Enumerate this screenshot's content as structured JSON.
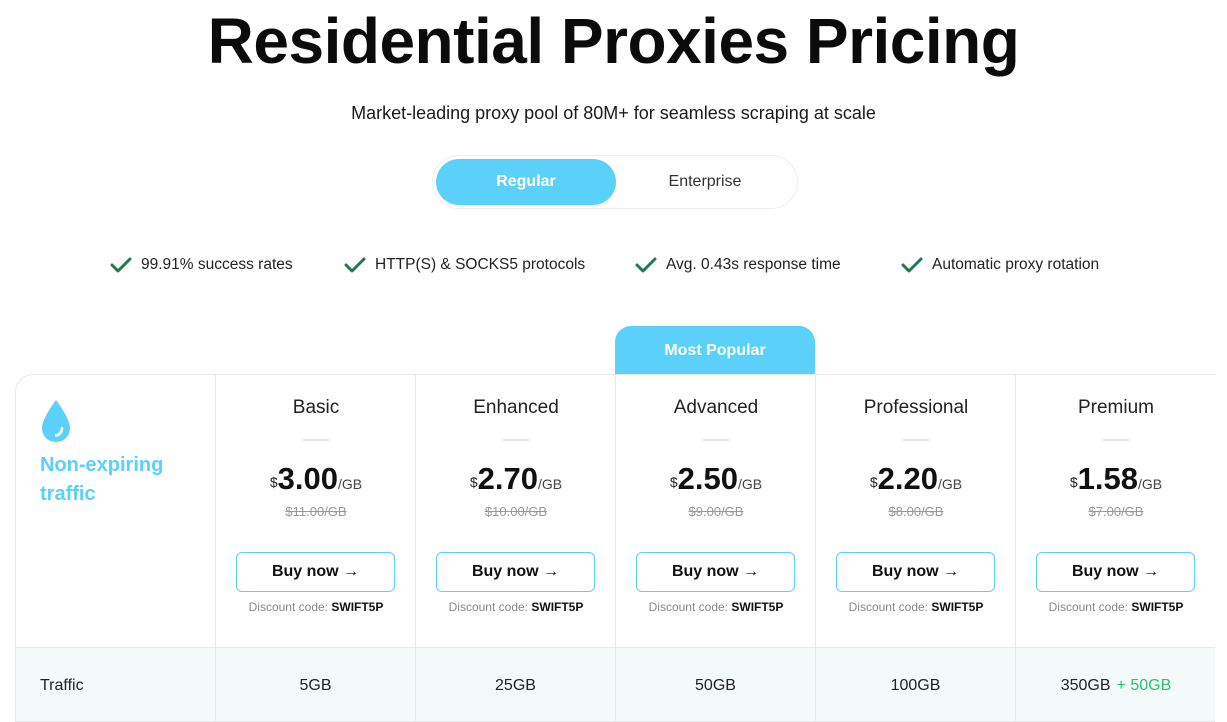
{
  "header": {
    "title": "Residential Proxies Pricing",
    "subtitle": "Market-leading proxy pool of 80M+ for seamless scraping at scale"
  },
  "toggle": {
    "options": [
      {
        "label": "Regular",
        "active": true
      },
      {
        "label": "Enterprise",
        "active": false
      }
    ]
  },
  "features": [
    {
      "icon": "check-icon",
      "label": "99.91% success rates"
    },
    {
      "icon": "check-icon",
      "label": "HTTP(S) & SOCKS5 protocols"
    },
    {
      "icon": "check-icon",
      "label": "Avg. 0.43s response time"
    },
    {
      "icon": "check-icon",
      "label": "Automatic proxy rotation"
    }
  ],
  "table": {
    "row_header": {
      "icon": "water-drop-icon",
      "label": "Non-expiring traffic"
    },
    "popular_label": "Most Popular",
    "currency": "$",
    "unit": "/GB",
    "buy_label": "Buy now →",
    "discount_prefix": "Discount code:",
    "discount_code": "SWIFT5P",
    "plans": [
      {
        "name": "Basic",
        "price": "3.00",
        "old_price": "$11.00/GB",
        "traffic": "5GB",
        "bonus": ""
      },
      {
        "name": "Enhanced",
        "price": "2.70",
        "old_price": "$10.00/GB",
        "traffic": "25GB",
        "bonus": ""
      },
      {
        "name": "Advanced",
        "price": "2.50",
        "old_price": "$9.00/GB",
        "traffic": "50GB",
        "bonus": "",
        "popular": true
      },
      {
        "name": "Professional",
        "price": "2.20",
        "old_price": "$8.00/GB",
        "traffic": "100GB",
        "bonus": ""
      },
      {
        "name": "Premium",
        "price": "1.58",
        "old_price": "$7.00/GB",
        "traffic": "350GB",
        "bonus": "+ 50GB"
      }
    ],
    "traffic_label": "Traffic"
  },
  "colors": {
    "accent": "#5bd0f8",
    "check": "#1f7a4d",
    "bonus": "#27c46b"
  }
}
